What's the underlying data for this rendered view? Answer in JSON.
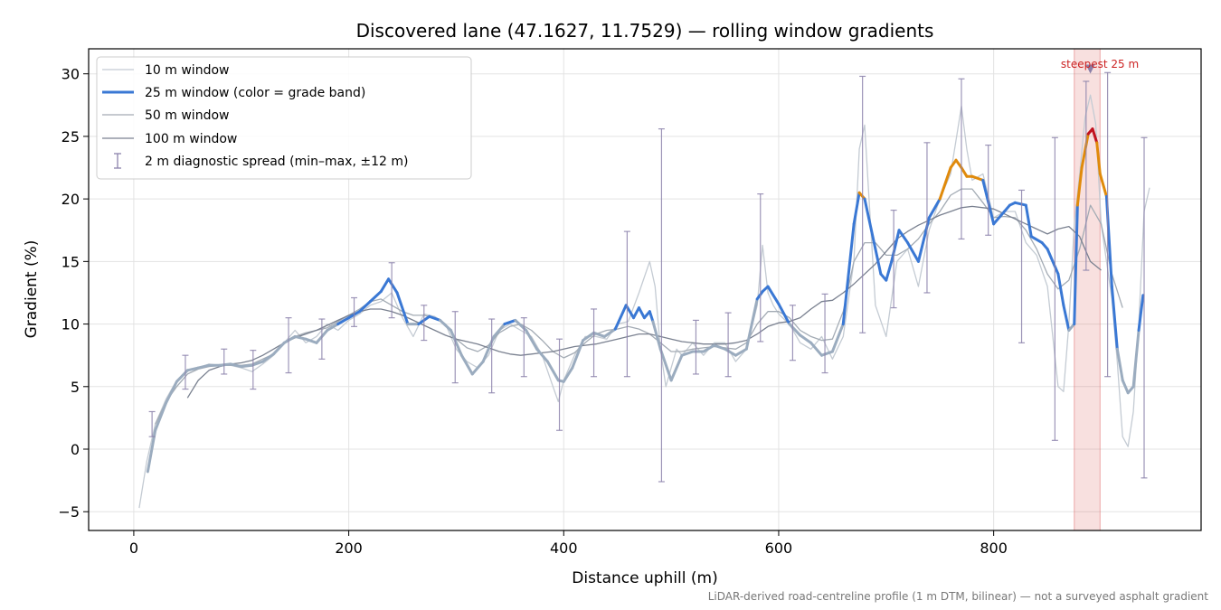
{
  "chart_data": {
    "type": "line",
    "title": "Discovered lane (47.1627, 11.7529) — rolling window gradients",
    "xlabel": "Distance uphill (m)",
    "ylabel": "Gradient (%)",
    "xlim": [
      -42,
      993
    ],
    "ylim": [
      -6.5,
      32
    ],
    "xticks": [
      0,
      200,
      400,
      600,
      800
    ],
    "yticks": [
      -5,
      0,
      5,
      10,
      15,
      20,
      25,
      30
    ],
    "grid": true,
    "legend_position": "top-left",
    "footnote": "LiDAR-derived road-centreline profile (1 m DTM, bilinear) — not a surveyed asphalt gradient",
    "highlight": {
      "x_start": 875,
      "x_end": 899,
      "label": "steepest 25 m",
      "peak_x": 890,
      "peak_y": 30.3,
      "color": "#d9534f"
    },
    "series": [
      {
        "name": "10 m window",
        "color": "#c4cbd3",
        "x": [
          5,
          12,
          20,
          30,
          40,
          50,
          60,
          70,
          80,
          90,
          100,
          110,
          120,
          130,
          140,
          150,
          160,
          170,
          180,
          190,
          200,
          210,
          220,
          230,
          240,
          250,
          260,
          270,
          280,
          290,
          300,
          310,
          320,
          330,
          340,
          350,
          360,
          370,
          380,
          390,
          395,
          400,
          410,
          420,
          430,
          440,
          450,
          460,
          470,
          480,
          485,
          490,
          495,
          500,
          505,
          510,
          520,
          530,
          540,
          550,
          560,
          570,
          580,
          585,
          590,
          595,
          600,
          610,
          620,
          630,
          640,
          650,
          660,
          670,
          675,
          680,
          690,
          700,
          710,
          720,
          730,
          740,
          750,
          760,
          770,
          775,
          780,
          790,
          800,
          810,
          820,
          830,
          840,
          850,
          860,
          865,
          870,
          875,
          880,
          885,
          890,
          895,
          900,
          910,
          915,
          920,
          925,
          930,
          935,
          940,
          945
        ],
        "y": [
          -4.7,
          -1,
          2,
          4,
          5.5,
          6.3,
          6.5,
          6.8,
          6.7,
          6.7,
          6.5,
          6.2,
          6.8,
          7.5,
          8.5,
          9.5,
          8.5,
          9,
          10,
          9.5,
          10.3,
          10.8,
          11.5,
          11.8,
          12.5,
          10.5,
          9,
          10.8,
          10.6,
          10,
          8,
          7,
          6.5,
          7.5,
          9.5,
          10,
          9.5,
          9,
          7.5,
          5,
          3.8,
          5.5,
          7.5,
          9,
          9,
          8.8,
          10,
          10.2,
          12.5,
          15,
          13,
          8,
          5,
          6.5,
          8,
          7.5,
          8.5,
          7.5,
          8.5,
          8.5,
          7,
          8,
          11.5,
          16.3,
          12.5,
          11.5,
          10.8,
          10,
          8.5,
          8,
          9,
          7.2,
          9,
          15,
          24,
          25.9,
          11.5,
          9,
          15,
          16,
          13,
          17.5,
          20,
          22,
          27.4,
          24,
          21.5,
          22,
          18.5,
          19,
          19,
          16.5,
          15.5,
          13,
          5,
          4.6,
          10,
          18,
          22,
          26.5,
          28.3,
          26,
          18,
          12,
          7,
          1,
          0.2,
          3,
          10,
          19,
          20.9
        ]
      },
      {
        "name": "25 m window (color = grade band)",
        "color": "#3a78d4",
        "bands": [
          {
            "max": 10,
            "color": "#9bacbf"
          },
          {
            "max": 20,
            "color": "#3a78d4"
          },
          {
            "max": 25,
            "color": "#e08a0b"
          },
          {
            "max": 100,
            "color": "#c1121f"
          }
        ],
        "x": [
          13,
          20,
          30,
          40,
          50,
          60,
          70,
          80,
          90,
          100,
          110,
          120,
          130,
          140,
          150,
          160,
          170,
          180,
          190,
          200,
          210,
          220,
          230,
          237,
          245,
          255,
          265,
          275,
          285,
          295,
          305,
          315,
          325,
          335,
          345,
          355,
          365,
          375,
          385,
          395,
          400,
          408,
          418,
          428,
          438,
          448,
          458,
          465,
          470,
          475,
          480,
          483,
          490,
          500,
          510,
          520,
          530,
          540,
          550,
          560,
          570,
          580,
          585,
          590,
          600,
          610,
          620,
          630,
          640,
          650,
          660,
          670,
          675,
          680,
          690,
          695,
          700,
          705,
          712,
          720,
          730,
          740,
          750,
          760,
          765,
          770,
          775,
          780,
          790,
          800,
          810,
          815,
          820,
          830,
          835,
          845,
          850,
          860,
          865,
          870,
          875,
          878,
          882,
          888,
          892,
          896,
          899,
          905,
          910,
          915,
          920,
          925,
          930,
          935,
          939
        ],
        "y": [
          -1.8,
          1.5,
          3.7,
          5.4,
          6.3,
          6.5,
          6.7,
          6.7,
          6.8,
          6.6,
          6.7,
          7,
          7.6,
          8.5,
          9,
          8.8,
          8.5,
          9.5,
          10,
          10.5,
          11,
          11.8,
          12.6,
          13.6,
          12.5,
          10,
          10,
          10.6,
          10.3,
          9.5,
          7.5,
          6,
          7,
          9,
          10,
          10.3,
          9.5,
          8,
          7,
          5.5,
          5.4,
          6.5,
          8.7,
          9.3,
          9,
          9.6,
          11.5,
          10.5,
          11.3,
          10.5,
          11,
          10.2,
          8,
          5.5,
          7.5,
          7.8,
          7.8,
          8.3,
          8,
          7.5,
          8,
          12,
          12.6,
          13,
          11.6,
          10,
          9.1,
          8.5,
          7.5,
          7.8,
          10,
          18,
          20.5,
          20,
          16,
          14,
          13.5,
          15,
          17.5,
          16.5,
          15,
          18.5,
          20,
          22.5,
          23.1,
          22.5,
          21.8,
          21.8,
          21.5,
          18,
          19,
          19.5,
          19.7,
          19.5,
          17,
          16.5,
          16,
          14,
          11.5,
          9.5,
          10,
          19.5,
          22.5,
          25.2,
          25.6,
          24.5,
          22,
          20.2,
          13,
          8,
          5.5,
          4.5,
          5,
          9.5,
          12.3
        ]
      },
      {
        "name": "50 m window",
        "color": "#a3abb4",
        "x": [
          20,
          30,
          40,
          50,
          60,
          70,
          80,
          90,
          100,
          110,
          120,
          130,
          140,
          150,
          160,
          170,
          180,
          190,
          200,
          210,
          220,
          230,
          240,
          250,
          260,
          270,
          280,
          290,
          300,
          310,
          320,
          330,
          340,
          350,
          360,
          370,
          380,
          390,
          400,
          410,
          420,
          430,
          440,
          450,
          460,
          470,
          480,
          490,
          500,
          510,
          520,
          530,
          540,
          550,
          560,
          570,
          580,
          590,
          600,
          610,
          620,
          630,
          640,
          650,
          660,
          670,
          680,
          690,
          700,
          710,
          720,
          730,
          740,
          750,
          760,
          770,
          780,
          790,
          800,
          810,
          820,
          830,
          840,
          850,
          860,
          870,
          880,
          890,
          900,
          910,
          920
        ],
        "y": [
          2,
          3.8,
          5,
          6,
          6.4,
          6.6,
          6.7,
          6.7,
          6.7,
          6.8,
          7.2,
          7.6,
          8.5,
          9,
          9.3,
          9.5,
          9.7,
          10.2,
          10.7,
          11.2,
          11.8,
          12,
          11.5,
          11,
          10.7,
          10.7,
          10.5,
          10,
          8.8,
          8.1,
          7.8,
          8.3,
          9.3,
          9.8,
          10,
          9.5,
          8.7,
          7.8,
          7.3,
          7.7,
          8.5,
          9.2,
          9.5,
          9.6,
          9.8,
          9.6,
          9.2,
          8.5,
          7.8,
          7.8,
          8,
          8.1,
          8.2,
          8.1,
          8,
          8.5,
          10,
          11,
          11,
          10.5,
          9.5,
          9,
          8.7,
          8.8,
          11,
          15,
          16.5,
          16.5,
          15.5,
          15.5,
          16,
          16.8,
          18,
          19,
          20.3,
          20.8,
          20.8,
          19.7,
          18.5,
          18.6,
          18.5,
          17.5,
          16,
          14,
          12.8,
          13.5,
          16,
          19.5,
          18,
          14,
          11.3
        ]
      },
      {
        "name": "100 m window",
        "color": "#7a8190",
        "x": [
          50,
          60,
          70,
          80,
          90,
          100,
          110,
          120,
          130,
          140,
          150,
          160,
          170,
          180,
          190,
          200,
          210,
          220,
          230,
          240,
          250,
          260,
          270,
          280,
          290,
          300,
          310,
          320,
          330,
          340,
          350,
          360,
          370,
          380,
          390,
          400,
          410,
          420,
          430,
          440,
          450,
          460,
          470,
          480,
          490,
          500,
          510,
          520,
          530,
          540,
          550,
          560,
          570,
          580,
          590,
          600,
          610,
          620,
          630,
          640,
          650,
          660,
          670,
          680,
          690,
          700,
          710,
          720,
          730,
          740,
          750,
          760,
          770,
          780,
          790,
          800,
          810,
          820,
          830,
          840,
          850,
          860,
          870,
          880,
          890,
          900
        ],
        "y": [
          4.1,
          5.5,
          6.3,
          6.6,
          6.8,
          6.9,
          7.1,
          7.5,
          8,
          8.5,
          8.9,
          9.2,
          9.5,
          9.9,
          10.3,
          10.7,
          11,
          11.2,
          11.2,
          11,
          10.7,
          10.3,
          9.9,
          9.5,
          9.1,
          8.8,
          8.6,
          8.4,
          8.1,
          7.8,
          7.6,
          7.5,
          7.6,
          7.7,
          7.8,
          8,
          8.2,
          8.3,
          8.4,
          8.6,
          8.8,
          9,
          9.2,
          9.2,
          9,
          8.8,
          8.6,
          8.5,
          8.4,
          8.4,
          8.4,
          8.5,
          8.7,
          9.2,
          9.8,
          10.1,
          10.2,
          10.5,
          11.2,
          11.8,
          11.9,
          12.5,
          13.2,
          14,
          14.8,
          15.8,
          16.8,
          17.4,
          17.9,
          18.3,
          18.7,
          19,
          19.3,
          19.4,
          19.3,
          19.2,
          18.8,
          18.4,
          18,
          17.6,
          17.2,
          17.6,
          17.8,
          17,
          15,
          14.3
        ]
      },
      {
        "name": "2 m diagnostic spread (min–max, ±12 m)",
        "color": "#8c82ac",
        "type": "errorbar",
        "x": [
          17,
          48,
          84,
          111,
          144,
          175,
          205,
          240,
          270,
          299,
          333,
          363,
          396,
          428,
          459,
          491,
          523,
          553,
          583,
          613,
          643,
          678,
          707,
          738,
          770,
          795,
          826,
          857,
          886,
          906,
          940
        ],
        "mid": [
          1.8,
          5.5,
          6.6,
          6.8,
          8.5,
          9.2,
          10.5,
          13.3,
          10.5,
          8.5,
          7.5,
          9,
          5.5,
          8.7,
          9.5,
          8.5,
          8.2,
          8.5,
          11.5,
          10,
          8,
          13.7,
          14,
          17.5,
          20.8,
          18.4,
          16.6,
          16,
          17.5,
          19.8,
          9.5
        ],
        "low": [
          1,
          4.8,
          6,
          4.8,
          6.1,
          7.2,
          9.8,
          10.5,
          8.7,
          5.3,
          4.5,
          5.8,
          1.5,
          5.8,
          5.8,
          -2.6,
          6,
          5.8,
          8.6,
          7.1,
          6.1,
          9.3,
          11.3,
          12.5,
          16.8,
          17.1,
          8.5,
          0.7,
          14.3,
          5.8,
          -2.3
        ],
        "high": [
          3,
          7.5,
          8,
          7.9,
          10.5,
          10.4,
          12.1,
          14.9,
          11.5,
          11,
          10.4,
          10.5,
          8.8,
          11.2,
          17.4,
          25.6,
          10.3,
          10.9,
          20.4,
          11.5,
          12.4,
          29.8,
          19.1,
          24.5,
          29.6,
          24.3,
          20.7,
          24.9,
          29.4,
          30.1,
          24.9
        ]
      }
    ]
  }
}
